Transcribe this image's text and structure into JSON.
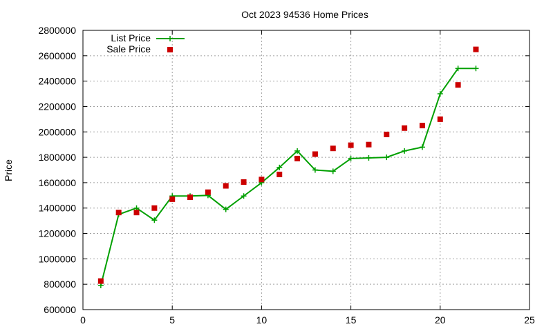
{
  "chart_data": {
    "type": "line",
    "title": "Oct 2023 94536 Home Prices",
    "xlabel": "",
    "ylabel": "Price",
    "xlim": [
      0,
      25
    ],
    "ylim": [
      600000,
      2800000
    ],
    "x_ticks": [
      0,
      5,
      10,
      15,
      20,
      25
    ],
    "y_ticks": [
      600000,
      800000,
      1000000,
      1200000,
      1400000,
      1600000,
      1800000,
      2000000,
      2200000,
      2400000,
      2600000,
      2800000
    ],
    "x_tick_labels": [
      "0",
      "5",
      "10",
      "15",
      "20",
      "25"
    ],
    "y_tick_labels": [
      "600000",
      "800000",
      "1000000",
      "1200000",
      "1400000",
      "1600000",
      "1800000",
      "2000000",
      "2200000",
      "2400000",
      "2600000",
      "2800000"
    ],
    "grid": true,
    "legend_position": "top-left",
    "colors": {
      "list": "#00a000",
      "sale": "#cc0000"
    },
    "x": [
      1,
      2,
      3,
      4,
      5,
      6,
      7,
      8,
      9,
      10,
      11,
      12,
      13,
      14,
      15,
      16,
      17,
      18,
      19,
      20,
      21,
      22
    ],
    "series": [
      {
        "name": "List Price",
        "style": "linespoints",
        "values": [
          790000,
          1350000,
          1400000,
          1305000,
          1495000,
          1495000,
          1500000,
          1390000,
          1495000,
          1600000,
          1720000,
          1850000,
          1700000,
          1690000,
          1790000,
          1795000,
          1800000,
          1850000,
          1880000,
          2300000,
          2500000,
          2500000
        ]
      },
      {
        "name": "Sale Price",
        "style": "points",
        "values": [
          825000,
          1365000,
          1365000,
          1400000,
          1470000,
          1485000,
          1525000,
          1575000,
          1605000,
          1625000,
          1665000,
          1790000,
          1825000,
          1870000,
          1895000,
          1900000,
          1980000,
          2030000,
          2050000,
          2100000,
          2370000,
          2650000
        ]
      }
    ]
  }
}
